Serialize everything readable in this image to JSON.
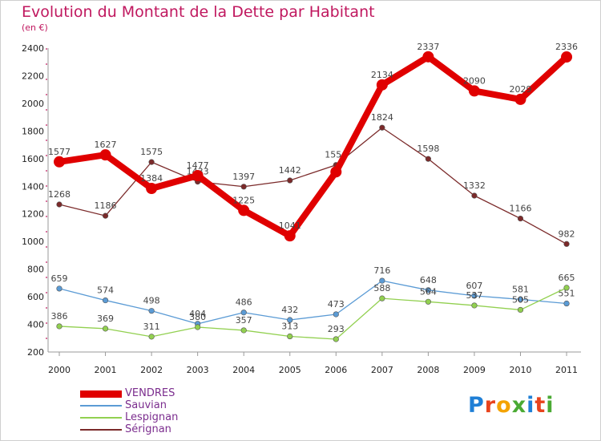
{
  "page": {
    "title": "Evolution du Montant de la Dette par Habitant",
    "unit": "(en €)",
    "logo_text": "Proxiti"
  },
  "legend": [
    {
      "name": "VENDRES",
      "color": "#e00000"
    },
    {
      "name": "Sauvian",
      "color": "#5b9bd5"
    },
    {
      "name": "Lespignan",
      "color": "#92d050"
    },
    {
      "name": "Sérignan",
      "color": "#7b2a2a"
    }
  ],
  "chart_data": {
    "type": "line",
    "title": "Evolution du Montant de la Dette par Habitant",
    "subtitle": "(en €)",
    "x": [
      "2000",
      "2001",
      "2002",
      "2003",
      "2004",
      "2005",
      "2006",
      "2007",
      "2008",
      "2009",
      "2010",
      "2011"
    ],
    "ylim": [
      200,
      2400
    ],
    "yticks": [
      200,
      400,
      600,
      800,
      1000,
      1200,
      1400,
      1600,
      1800,
      2000,
      2200,
      2400
    ],
    "grid": false,
    "legend_position": "bottom-left",
    "series": [
      {
        "name": "Sérignan",
        "color": "#7b2a2a",
        "values": [
          1268,
          1186,
          1575,
          1433,
          1397,
          1442,
          1554,
          1824,
          1598,
          1332,
          1166,
          982
        ],
        "labels": [
          "1268",
          "1186",
          "1575",
          "1433",
          "1397",
          "1442",
          "1554",
          "1824",
          "1598",
          "1332",
          "1166",
          "982"
        ]
      },
      {
        "name": "Sauvian",
        "color": "#5b9bd5",
        "values": [
          659,
          574,
          498,
          404,
          486,
          432,
          473,
          716,
          648,
          607,
          581,
          551
        ],
        "labels": [
          "659",
          "574",
          "498",
          "404",
          "486",
          "432",
          "473",
          "716",
          "648",
          "607",
          "581",
          "551"
        ]
      },
      {
        "name": "Lespignan",
        "color": "#92d050",
        "values": [
          386,
          369,
          311,
          380,
          357,
          313,
          293,
          588,
          564,
          537,
          505,
          665
        ],
        "labels": [
          "386",
          "369",
          "311",
          "380",
          "357",
          "313",
          "293",
          "588",
          "564",
          "537",
          "505",
          "665"
        ]
      },
      {
        "name": "VENDRES",
        "color": "#e00000",
        "values": [
          1577,
          1627,
          1384,
          1477,
          1225,
          1041,
          1504,
          2134,
          2337,
          2090,
          2029,
          2336
        ],
        "labels": [
          "1577",
          "1627",
          "1384",
          "1477",
          "1225",
          "1041",
          "",
          "2134",
          "2337",
          "2090",
          "2029",
          "2336"
        ]
      }
    ]
  }
}
